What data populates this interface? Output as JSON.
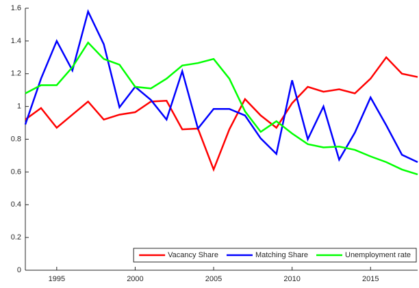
{
  "chart_data": {
    "type": "line",
    "x": [
      1993,
      1994,
      1995,
      1996,
      1997,
      1998,
      1999,
      2000,
      2001,
      2002,
      2003,
      2004,
      2005,
      2006,
      2007,
      2008,
      2009,
      2010,
      2011,
      2012,
      2013,
      2014,
      2015,
      2016,
      2017,
      2018
    ],
    "series": [
      {
        "name": "Vacancy Share",
        "color": "#ff0000",
        "values": [
          0.92,
          0.99,
          0.87,
          0.95,
          1.03,
          0.92,
          0.95,
          0.965,
          1.03,
          1.035,
          0.86,
          0.865,
          0.615,
          0.86,
          1.045,
          0.945,
          0.87,
          1.02,
          1.12,
          1.09,
          1.105,
          1.08,
          1.17,
          1.3,
          1.2,
          1.18
        ]
      },
      {
        "name": "Matching Share",
        "color": "#0000ff",
        "values": [
          0.89,
          1.17,
          1.4,
          1.22,
          1.58,
          1.38,
          0.995,
          1.12,
          1.04,
          0.92,
          1.215,
          0.865,
          0.985,
          0.985,
          0.945,
          0.805,
          0.71,
          1.16,
          0.8,
          1.0,
          0.675,
          0.84,
          1.055,
          0.885,
          0.705,
          0.66
        ]
      },
      {
        "name": "Unemployment rate",
        "color": "#00ff00",
        "values": [
          1.08,
          1.13,
          1.13,
          1.24,
          1.39,
          1.29,
          1.255,
          1.12,
          1.11,
          1.17,
          1.25,
          1.265,
          1.29,
          1.17,
          0.97,
          0.845,
          0.91,
          0.835,
          0.77,
          0.75,
          0.755,
          0.735,
          0.695,
          0.66,
          0.615,
          0.585
        ]
      }
    ],
    "xlim": [
      1993,
      2018
    ],
    "xticks": [
      1995,
      2000,
      2005,
      2010,
      2015
    ],
    "ylim": [
      0,
      1.6
    ],
    "yticks": [
      0,
      0.2,
      0.4,
      0.6,
      0.8,
      1,
      1.2,
      1.4,
      1.6
    ],
    "legend": "lower right"
  }
}
